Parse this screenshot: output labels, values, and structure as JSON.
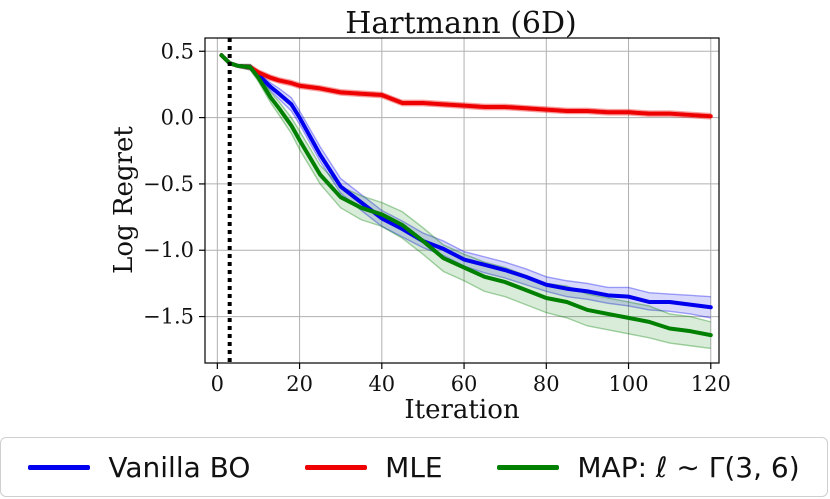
{
  "chart_data": {
    "type": "line",
    "title": "Hartmann (6D)",
    "xlabel": "Iteration",
    "ylabel": "Log Regret",
    "xlim": [
      -3,
      122
    ],
    "ylim": [
      -1.85,
      0.6
    ],
    "xticks": [
      0,
      20,
      40,
      60,
      80,
      100,
      120
    ],
    "xtick_labels": [
      "0",
      "20",
      "40",
      "60",
      "80",
      "100",
      "120"
    ],
    "yticks": [
      0.5,
      0.0,
      -0.5,
      -1.0,
      -1.5
    ],
    "ytick_labels": [
      "0.5",
      "0.0",
      "−0.5",
      "−1.0",
      "−1.5"
    ],
    "grid": true,
    "vline": {
      "x": 3,
      "style": "dotted",
      "color": "#000000"
    },
    "legend_position": "bottom-outside",
    "x": [
      1,
      3,
      5,
      8,
      10,
      13,
      15,
      18,
      20,
      25,
      30,
      35,
      40,
      45,
      50,
      55,
      60,
      65,
      70,
      75,
      80,
      85,
      90,
      95,
      100,
      105,
      110,
      115,
      120
    ],
    "series": [
      {
        "name": "Vanilla BO",
        "color": "#0000ee",
        "values": [
          0.47,
          0.41,
          0.39,
          0.38,
          0.32,
          0.23,
          0.18,
          0.1,
          0.0,
          -0.28,
          -0.52,
          -0.64,
          -0.76,
          -0.84,
          -0.93,
          -0.99,
          -1.07,
          -1.11,
          -1.15,
          -1.2,
          -1.26,
          -1.29,
          -1.31,
          -1.34,
          -1.35,
          -1.39,
          -1.39,
          -1.41,
          -1.43
        ],
        "band_lower": [
          0.46,
          0.4,
          0.38,
          0.36,
          0.3,
          0.2,
          0.14,
          0.05,
          -0.05,
          -0.33,
          -0.57,
          -0.7,
          -0.82,
          -0.9,
          -0.98,
          -1.04,
          -1.12,
          -1.17,
          -1.21,
          -1.26,
          -1.31,
          -1.35,
          -1.37,
          -1.4,
          -1.42,
          -1.45,
          -1.46,
          -1.48,
          -1.51
        ],
        "band_upper": [
          0.48,
          0.42,
          0.4,
          0.4,
          0.34,
          0.26,
          0.22,
          0.15,
          0.05,
          -0.22,
          -0.46,
          -0.58,
          -0.7,
          -0.78,
          -0.87,
          -0.93,
          -1.01,
          -1.05,
          -1.09,
          -1.14,
          -1.2,
          -1.23,
          -1.25,
          -1.28,
          -1.28,
          -1.32,
          -1.33,
          -1.34,
          -1.35
        ]
      },
      {
        "name": "MLE",
        "color": "#ee0000",
        "values": [
          0.47,
          0.41,
          0.39,
          0.38,
          0.34,
          0.3,
          0.28,
          0.26,
          0.24,
          0.22,
          0.19,
          0.18,
          0.17,
          0.11,
          0.11,
          0.1,
          0.09,
          0.08,
          0.08,
          0.07,
          0.06,
          0.05,
          0.05,
          0.04,
          0.04,
          0.03,
          0.03,
          0.02,
          0.01
        ],
        "band_lower": [
          0.46,
          0.4,
          0.38,
          0.36,
          0.32,
          0.28,
          0.26,
          0.24,
          0.22,
          0.2,
          0.17,
          0.16,
          0.15,
          0.09,
          0.09,
          0.08,
          0.07,
          0.06,
          0.06,
          0.05,
          0.04,
          0.03,
          0.03,
          0.02,
          0.02,
          0.01,
          0.01,
          0.0,
          -0.01
        ],
        "band_upper": [
          0.48,
          0.42,
          0.4,
          0.4,
          0.36,
          0.32,
          0.3,
          0.28,
          0.26,
          0.24,
          0.21,
          0.2,
          0.19,
          0.13,
          0.13,
          0.12,
          0.11,
          0.1,
          0.1,
          0.09,
          0.08,
          0.07,
          0.07,
          0.06,
          0.06,
          0.05,
          0.05,
          0.04,
          0.03
        ]
      },
      {
        "name": "MAP: ℓ ∼ Γ(3, 6)",
        "color": "#008000",
        "values": [
          0.47,
          0.41,
          0.39,
          0.38,
          0.3,
          0.15,
          0.07,
          -0.06,
          -0.17,
          -0.43,
          -0.6,
          -0.68,
          -0.73,
          -0.81,
          -0.93,
          -1.06,
          -1.13,
          -1.2,
          -1.24,
          -1.3,
          -1.36,
          -1.39,
          -1.45,
          -1.48,
          -1.51,
          -1.54,
          -1.59,
          -1.61,
          -1.64
        ],
        "band_lower": [
          0.46,
          0.4,
          0.38,
          0.36,
          0.27,
          0.11,
          0.02,
          -0.12,
          -0.24,
          -0.5,
          -0.68,
          -0.77,
          -0.82,
          -0.91,
          -1.03,
          -1.16,
          -1.23,
          -1.31,
          -1.35,
          -1.41,
          -1.47,
          -1.51,
          -1.57,
          -1.6,
          -1.63,
          -1.66,
          -1.7,
          -1.72,
          -1.74
        ],
        "band_upper": [
          0.48,
          0.42,
          0.4,
          0.4,
          0.33,
          0.19,
          0.12,
          0.0,
          -0.1,
          -0.36,
          -0.52,
          -0.59,
          -0.64,
          -0.71,
          -0.83,
          -0.96,
          -1.03,
          -1.09,
          -1.13,
          -1.19,
          -1.25,
          -1.27,
          -1.33,
          -1.36,
          -1.39,
          -1.42,
          -1.48,
          -1.5,
          -1.54
        ]
      }
    ]
  }
}
